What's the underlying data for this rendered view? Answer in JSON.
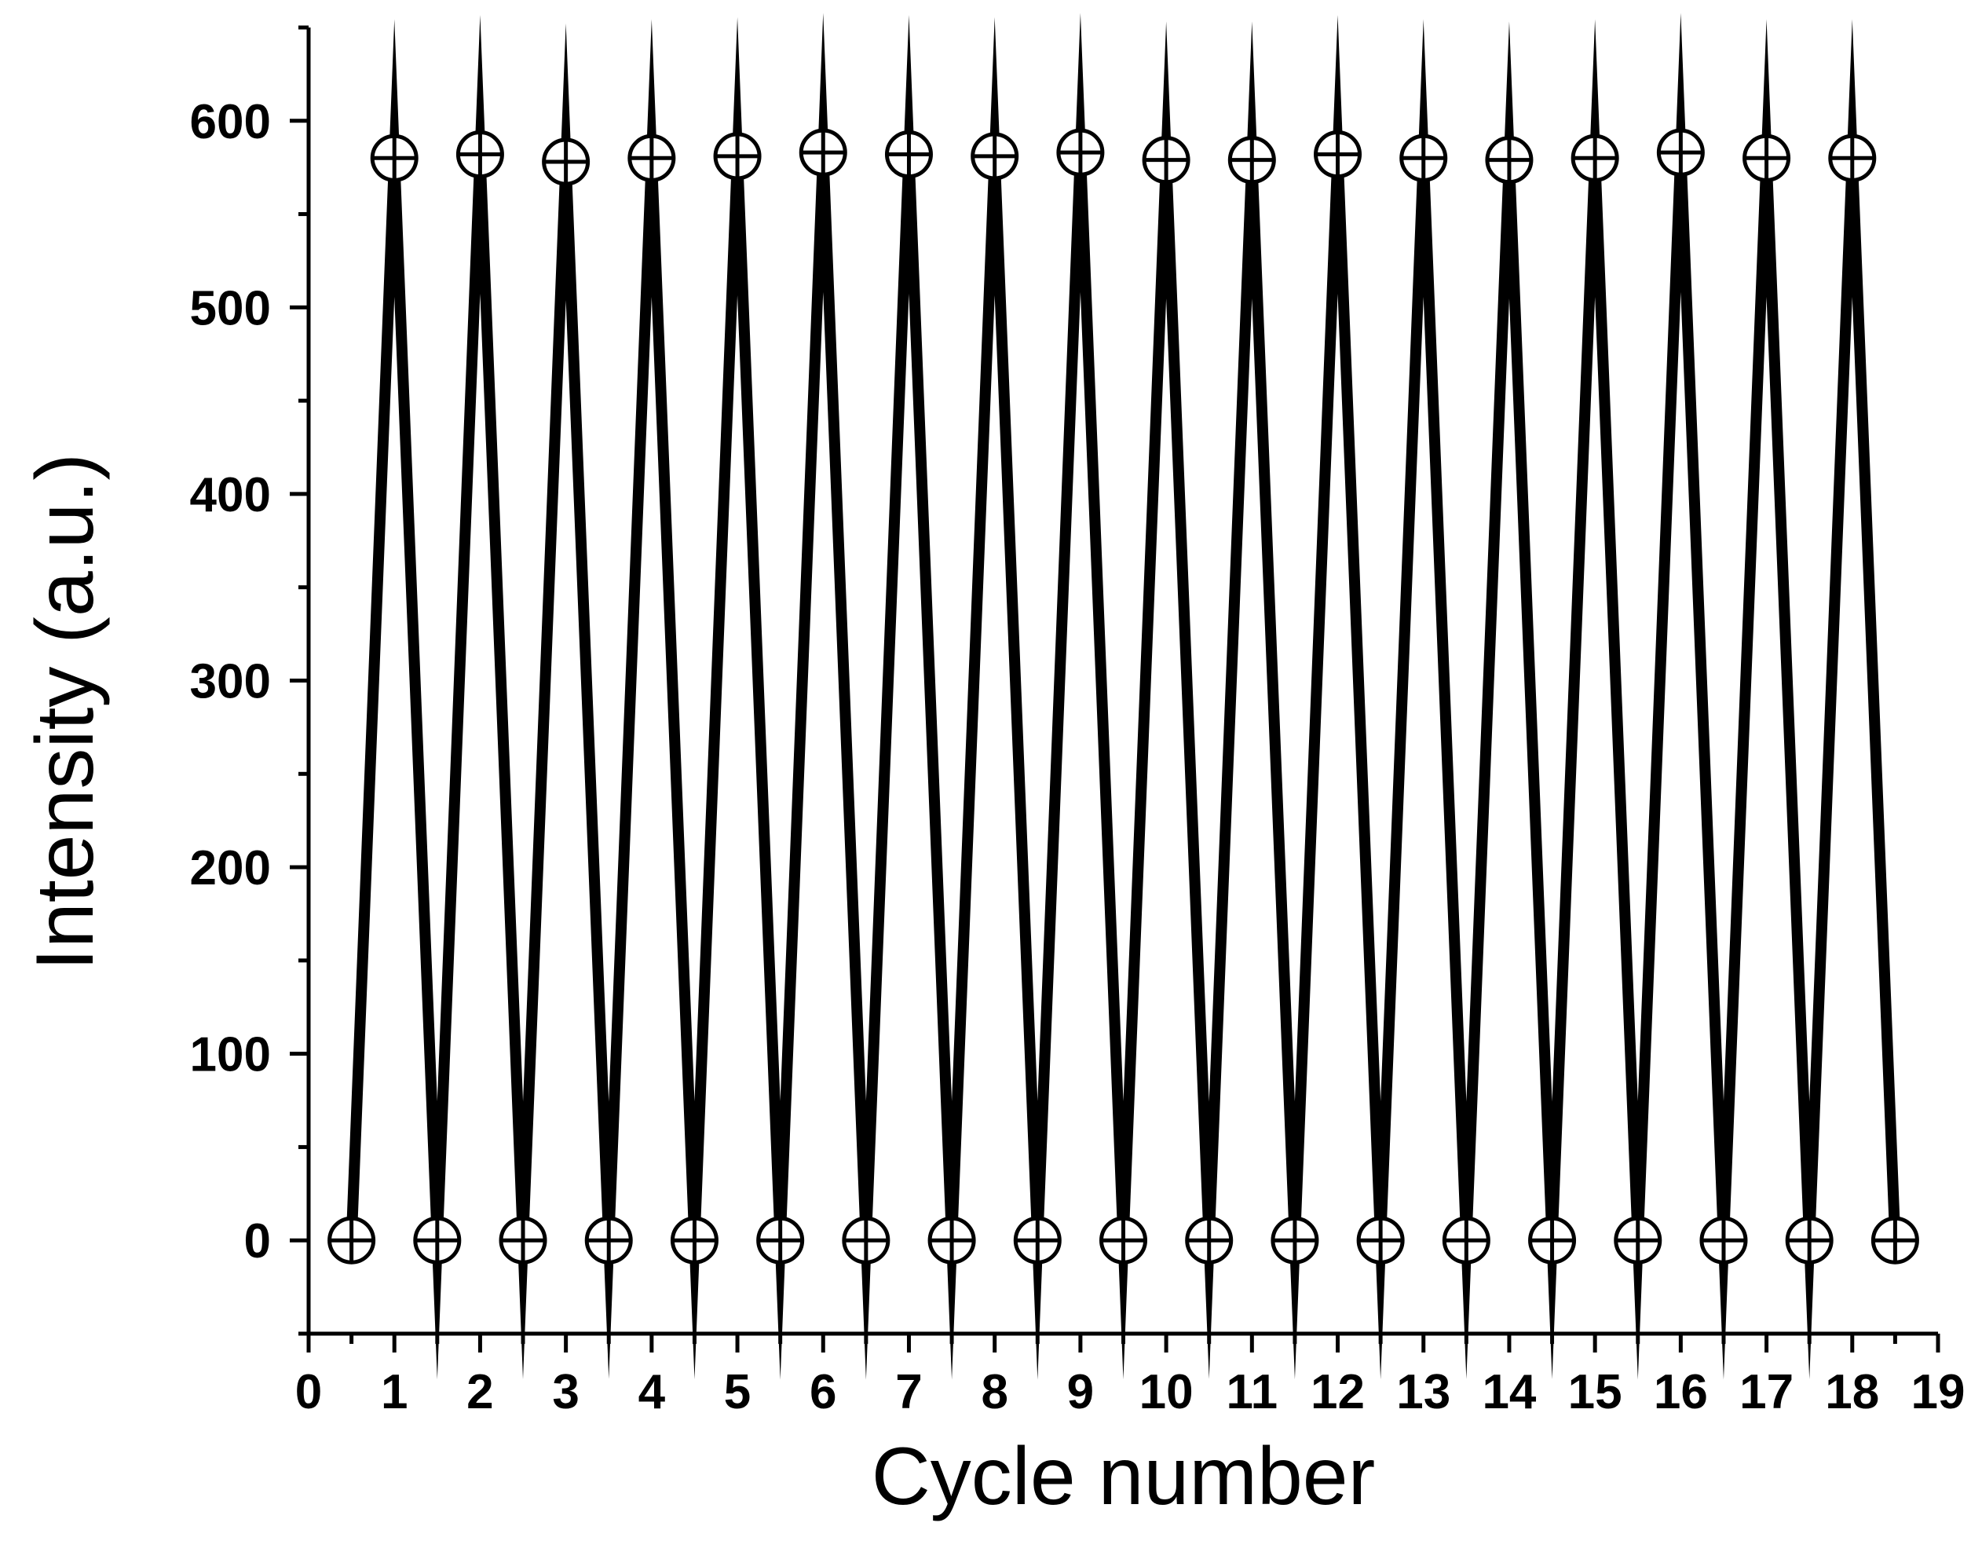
{
  "chart_data": {
    "type": "line",
    "title": "",
    "xlabel": "Cycle number",
    "ylabel": "Intensity (a.u.)",
    "xlim": [
      0,
      19
    ],
    "ylim": [
      -50,
      650
    ],
    "x_ticks": [
      0,
      1,
      2,
      3,
      4,
      5,
      6,
      7,
      8,
      9,
      10,
      11,
      12,
      13,
      14,
      15,
      16,
      17,
      18,
      19
    ],
    "y_ticks": [
      0,
      100,
      200,
      300,
      400,
      500,
      600
    ],
    "grid": false,
    "legend": "none",
    "line_color": "#000000",
    "marker": "circle-plus",
    "series": [
      {
        "x": [
          0.5,
          1,
          1.5,
          2,
          2.5,
          3,
          3.5,
          4,
          4.5,
          5,
          5.5,
          6,
          6.5,
          7,
          7.5,
          8,
          8.5,
          9,
          9.5,
          10,
          10.5,
          11,
          11.5,
          12,
          12.5,
          13,
          13.5,
          14,
          14.5,
          15,
          15.5,
          16,
          16.5,
          17,
          17.5,
          18,
          18.5
        ],
        "y": [
          0,
          580,
          0,
          582,
          0,
          578,
          0,
          580,
          0,
          581,
          0,
          583,
          0,
          582,
          0,
          581,
          0,
          583,
          0,
          579,
          0,
          579,
          0,
          582,
          0,
          580,
          0,
          579,
          0,
          580,
          0,
          583,
          0,
          580,
          0,
          580,
          0
        ]
      }
    ]
  }
}
